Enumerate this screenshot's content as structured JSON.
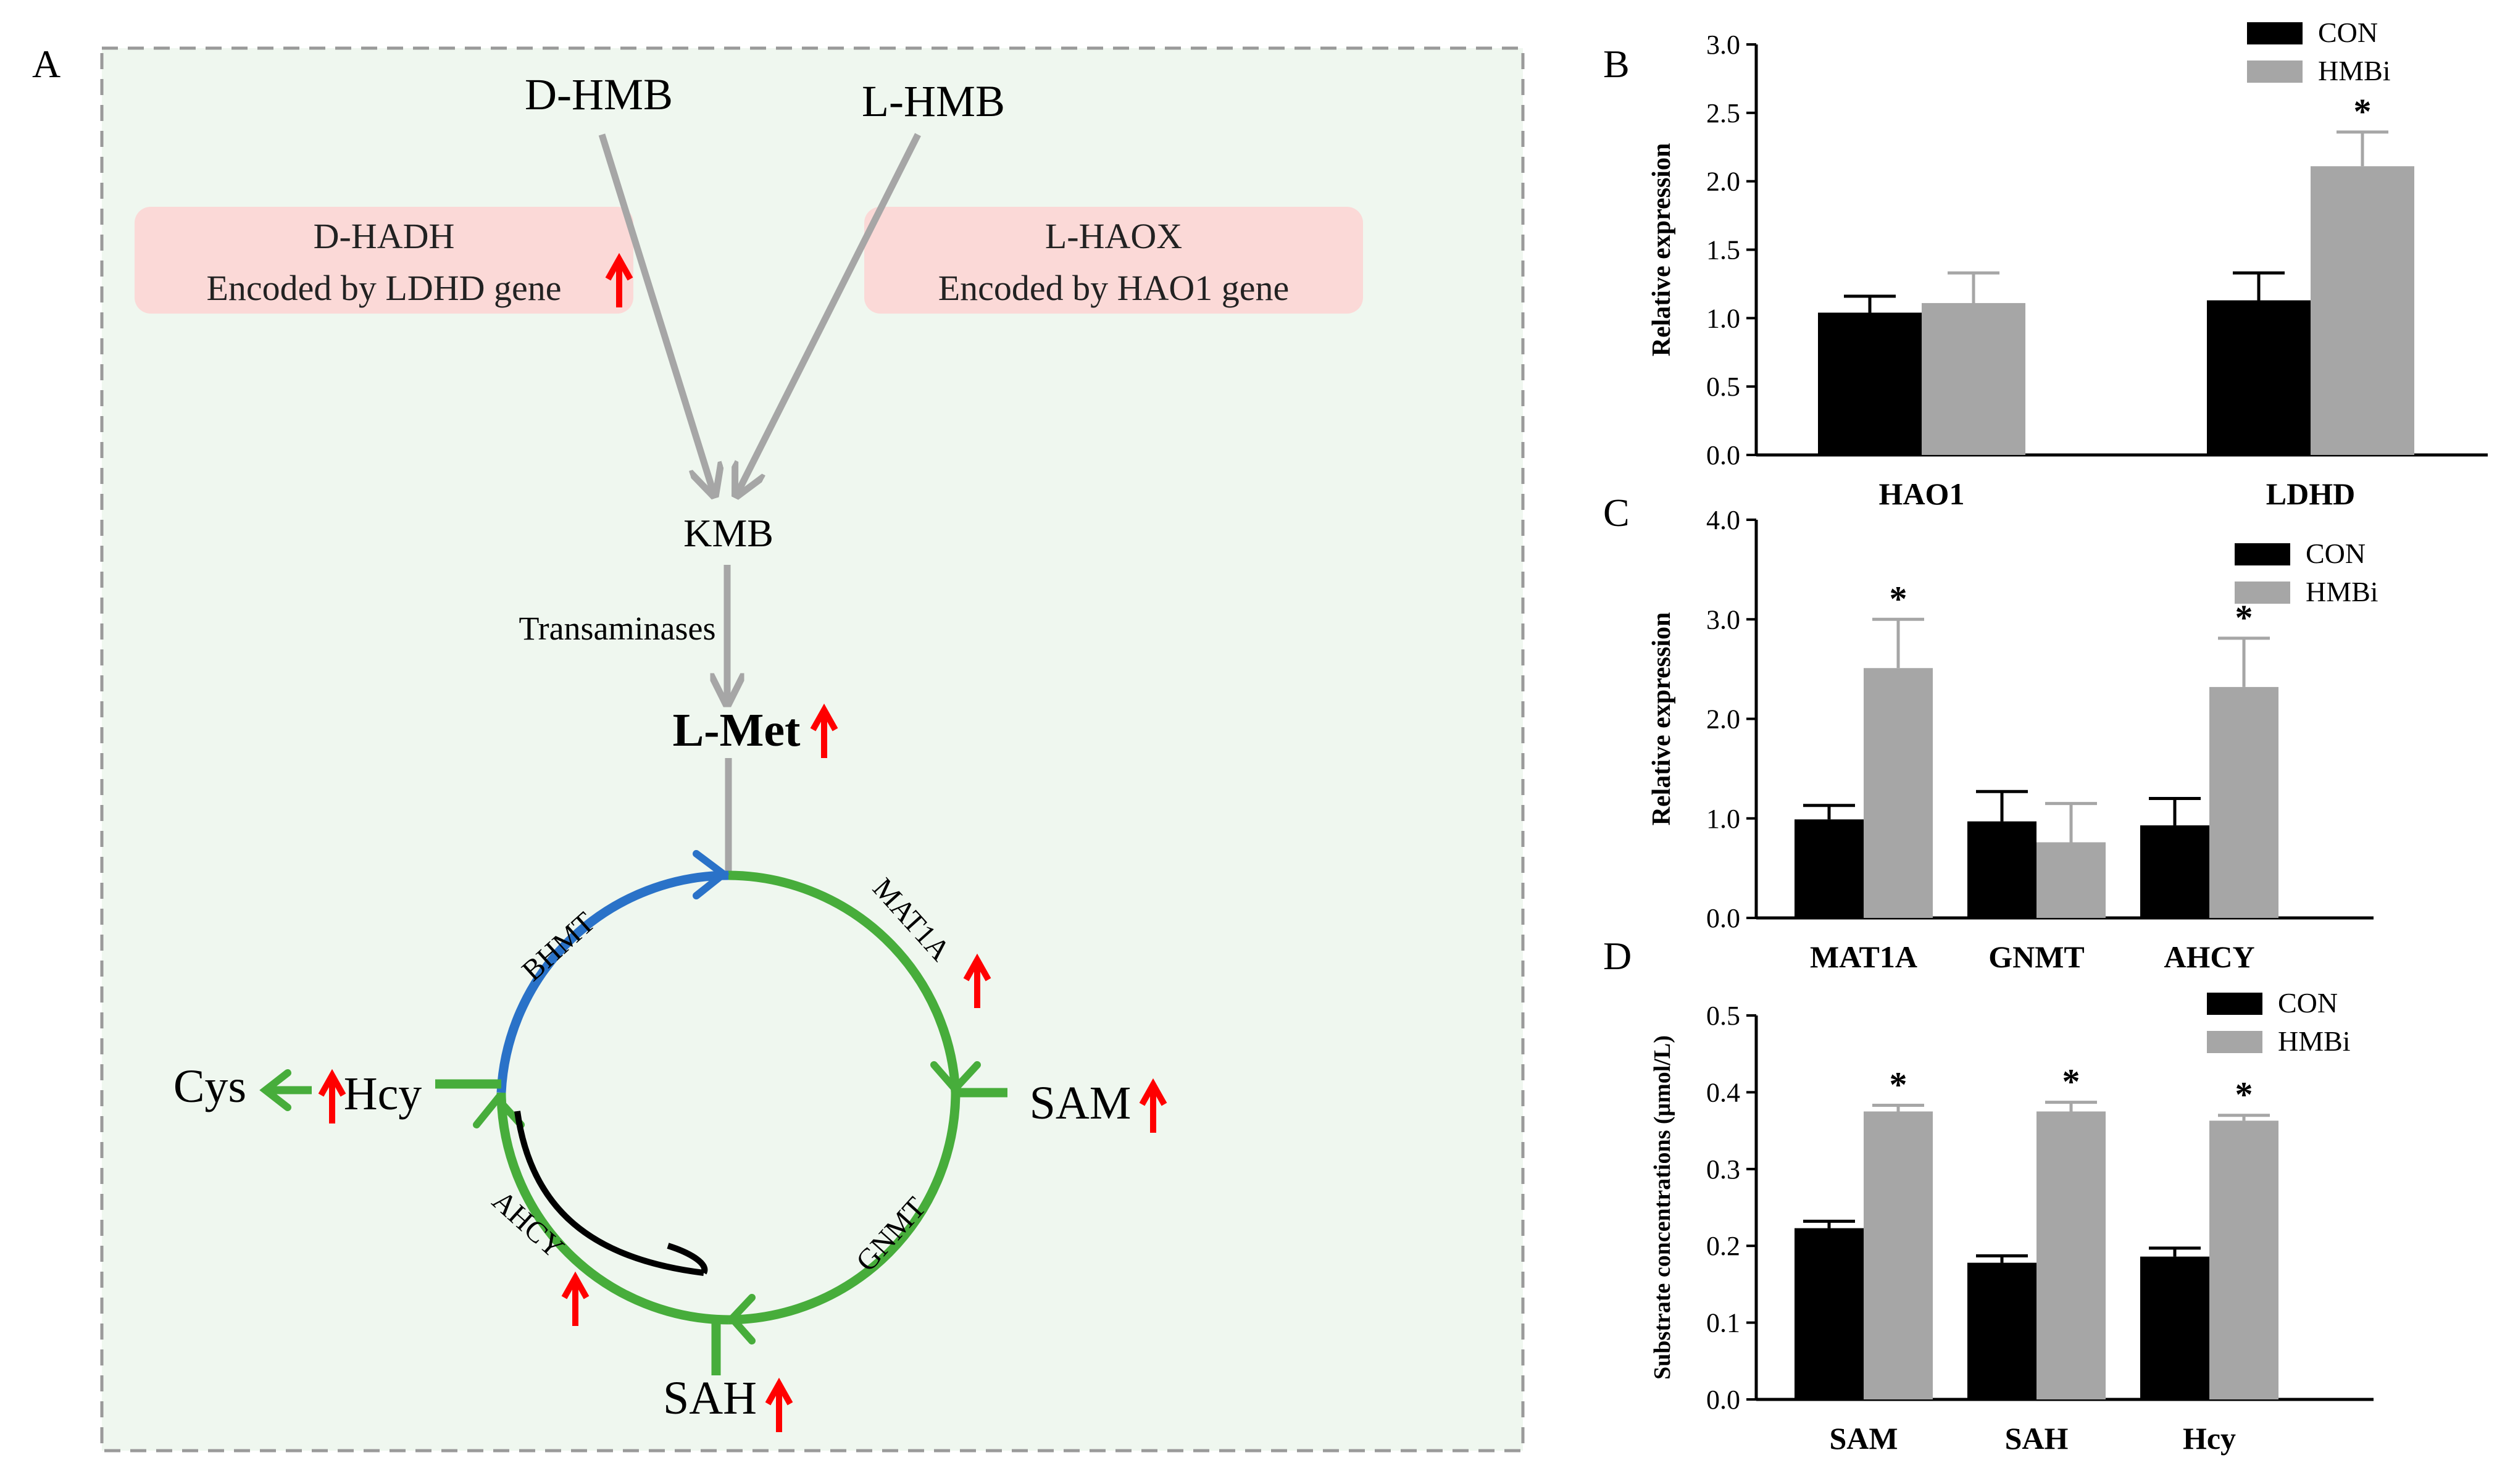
{
  "colors": {
    "panel_bg": "#eff7ef",
    "panel_border": "#9a9a9a",
    "enzyme_box": "#fbd9d7",
    "gray_arrow": "#a6a6a6",
    "green": "#47ad3b",
    "blue": "#2a72c8",
    "red": "#ff0000",
    "con_bar": "#000000",
    "hmbi_bar": "#a6a6a6"
  },
  "panel_a": {
    "label": "A",
    "d_hmb": "D-HMB",
    "l_hmb": "L-HMB",
    "d_hadh_name": "D-HADH",
    "d_hadh_gene": "Encoded by LDHD gene",
    "l_haox_name": "L-HAOX",
    "l_haox_gene": "Encoded by HAO1 gene",
    "kmb": "KMB",
    "transaminases": "Transaminases",
    "l_met": "L-Met",
    "sam": "SAM",
    "sah": "SAH",
    "hcy": "Hcy",
    "cys": "Cys",
    "bhmt": "BHMT",
    "mat1a": "MAT1A",
    "gnmt": "GNMT",
    "ahcy": "AHCY",
    "up_arrow_icon": "red-up-arrow-icon"
  },
  "chart_data": [
    {
      "panel": "B",
      "type": "bar",
      "categories": [
        "HAO1",
        "LDHD"
      ],
      "series": [
        {
          "name": "CON",
          "values": [
            1.04,
            1.13
          ],
          "errors": [
            0.12,
            0.2
          ]
        },
        {
          "name": "HMBi",
          "values": [
            1.11,
            2.11
          ],
          "errors": [
            0.22,
            0.25
          ]
        }
      ],
      "significance": [
        {
          "category": "LDHD",
          "series": "HMBi",
          "mark": "*"
        }
      ],
      "title": "",
      "xlabel": "",
      "ylabel": "Relative expression",
      "ylim": [
        0,
        3
      ],
      "yticks": [
        "0.0",
        "0.5",
        "1.0",
        "1.5",
        "2.0",
        "2.5",
        "3.0"
      ],
      "legend": [
        "CON",
        "HMBi"
      ],
      "legend_position": "top-right"
    },
    {
      "panel": "C",
      "type": "bar",
      "categories": [
        "MAT1A",
        "GNMT",
        "AHCY"
      ],
      "series": [
        {
          "name": "CON",
          "values": [
            0.99,
            0.97,
            0.93
          ],
          "errors": [
            0.14,
            0.3,
            0.27
          ]
        },
        {
          "name": "HMBi",
          "values": [
            2.51,
            0.76,
            2.32
          ],
          "errors": [
            0.49,
            0.39,
            0.49
          ]
        }
      ],
      "significance": [
        {
          "category": "MAT1A",
          "series": "HMBi",
          "mark": "*"
        },
        {
          "category": "AHCY",
          "series": "HMBi",
          "mark": "*"
        }
      ],
      "title": "",
      "xlabel": "",
      "ylabel": "Relative expression",
      "ylim": [
        0,
        4
      ],
      "yticks": [
        "0.0",
        "1.0",
        "2.0",
        "3.0",
        "4.0"
      ],
      "legend": [
        "CON",
        "HMBi"
      ],
      "legend_position": "top-right"
    },
    {
      "panel": "D",
      "type": "bar",
      "categories": [
        "SAM",
        "SAH",
        "Hcy"
      ],
      "series": [
        {
          "name": "CON",
          "values": [
            0.223,
            0.178,
            0.186
          ],
          "errors": [
            0.009,
            0.009,
            0.011
          ]
        },
        {
          "name": "HMBi",
          "values": [
            0.375,
            0.375,
            0.363
          ],
          "errors": [
            0.008,
            0.012,
            0.007
          ]
        }
      ],
      "significance": [
        {
          "category": "SAM",
          "series": "HMBi",
          "mark": "*"
        },
        {
          "category": "SAH",
          "series": "HMBi",
          "mark": "*"
        },
        {
          "category": "Hcy",
          "series": "HMBi",
          "mark": "*"
        }
      ],
      "title": "",
      "xlabel": "",
      "ylabel": "Substrate concentrations (μmol/L)",
      "ylim": [
        0,
        0.5
      ],
      "yticks": [
        "0.0",
        "0.1",
        "0.2",
        "0.3",
        "0.4",
        "0.5"
      ],
      "legend": [
        "CON",
        "HMBi"
      ],
      "legend_position": "top-right"
    }
  ]
}
